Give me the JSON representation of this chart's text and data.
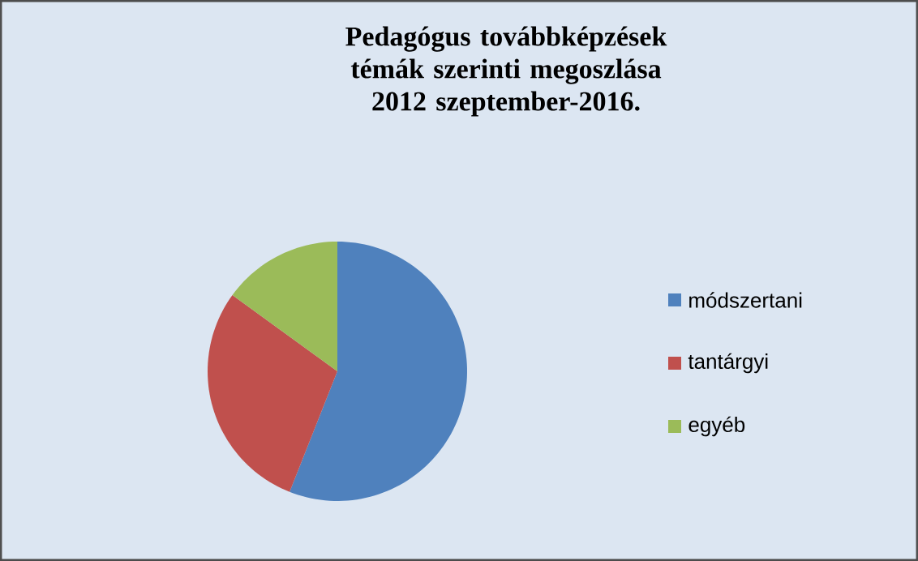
{
  "chart_data": {
    "type": "pie",
    "title": "Pedagógus továbbképzések témák szerinti megoszlása 2012 szeptember-2016.",
    "categories": [
      "módszertani",
      "tantárgyi",
      "egyéb"
    ],
    "values": [
      56,
      29,
      15
    ],
    "colors": [
      "#4f81bd",
      "#c0504d",
      "#9bbb59"
    ],
    "legend": "right"
  }
}
